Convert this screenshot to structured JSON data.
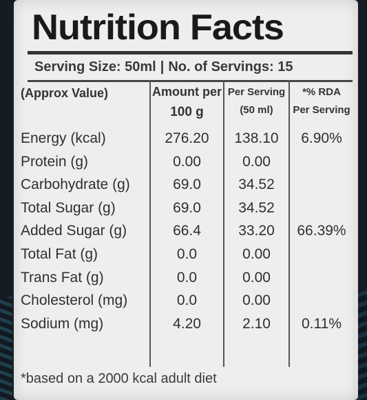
{
  "title": "Nutrition Facts",
  "serving_size": "Serving Size: 50ml",
  "separator": "|",
  "servings": "No. of Servings: 15",
  "headers": {
    "name": "(Approx Value)",
    "amount_line1": "Amount per",
    "amount_line2": "100 g",
    "serving_line1": "Per Serving",
    "serving_line2": "(50 ml)",
    "rda_line1": "*% RDA",
    "rda_line2": "Per Serving"
  },
  "rows": [
    {
      "name": "Energy (kcal)",
      "amount": "276.20",
      "serving": "138.10",
      "rda": "6.90%"
    },
    {
      "name": "Protein (g)",
      "amount": "0.00",
      "serving": "0.00",
      "rda": ""
    },
    {
      "name": "Carbohydrate (g)",
      "amount": "69.0",
      "serving": "34.52",
      "rda": ""
    },
    {
      "name": "Total Sugar (g)",
      "amount": "69.0",
      "serving": "34.52",
      "rda": ""
    },
    {
      "name": "Added Sugar (g)",
      "amount": "66.4",
      "serving": "33.20",
      "rda": "66.39%"
    },
    {
      "name": "Total Fat (g)",
      "amount": "0.0",
      "serving": "0.00",
      "rda": ""
    },
    {
      "name": "Trans Fat (g)",
      "amount": "0.0",
      "serving": "0.00",
      "rda": ""
    },
    {
      "name": "Cholesterol (mg)",
      "amount": "0.0",
      "serving": "0.00",
      "rda": ""
    },
    {
      "name": "Sodium (mg)",
      "amount": "4.20",
      "serving": "2.10",
      "rda": "0.11%"
    }
  ],
  "footnote": "*based on a 2000 kcal adult diet"
}
